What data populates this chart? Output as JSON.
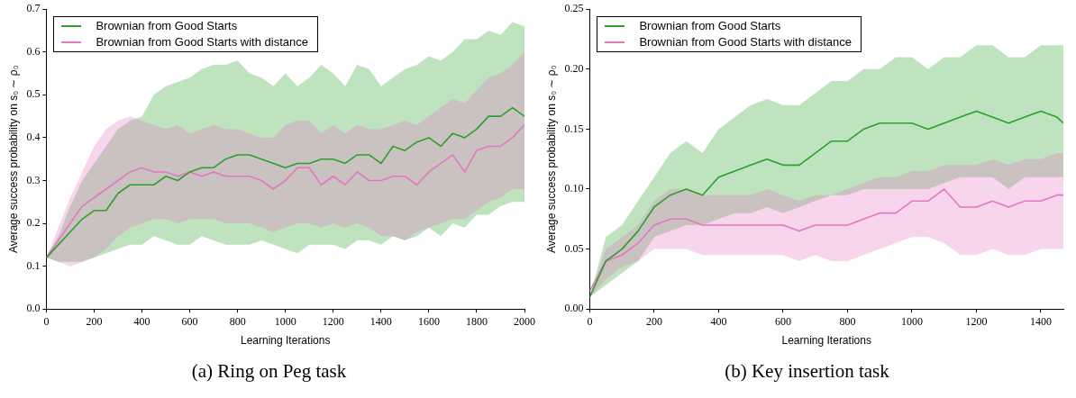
{
  "chart_data": [
    {
      "type": "line",
      "title": "(a) Ring on Peg task",
      "xlabel": "Learning Iterations",
      "ylabel": "Average success probability on s₀ ∼ ρ₀",
      "x": [
        0,
        50,
        100,
        150,
        200,
        250,
        300,
        350,
        400,
        450,
        500,
        550,
        600,
        650,
        700,
        750,
        800,
        850,
        900,
        950,
        1000,
        1050,
        1100,
        1150,
        1200,
        1250,
        1300,
        1350,
        1400,
        1450,
        1500,
        1550,
        1600,
        1650,
        1700,
        1750,
        1800,
        1850,
        1900,
        1950,
        2000
      ],
      "series": [
        {
          "name": "Brownian from Good Starts",
          "color": "#2ca02c",
          "values": [
            0.12,
            0.15,
            0.18,
            0.21,
            0.23,
            0.23,
            0.27,
            0.29,
            0.29,
            0.29,
            0.31,
            0.3,
            0.32,
            0.33,
            0.33,
            0.35,
            0.36,
            0.36,
            0.35,
            0.34,
            0.33,
            0.34,
            0.34,
            0.35,
            0.35,
            0.34,
            0.36,
            0.36,
            0.34,
            0.38,
            0.37,
            0.39,
            0.4,
            0.38,
            0.41,
            0.4,
            0.42,
            0.45,
            0.45,
            0.47,
            0.45
          ],
          "upper": [
            0.12,
            0.17,
            0.24,
            0.3,
            0.34,
            0.38,
            0.42,
            0.44,
            0.45,
            0.5,
            0.52,
            0.53,
            0.54,
            0.56,
            0.57,
            0.57,
            0.58,
            0.55,
            0.54,
            0.52,
            0.55,
            0.52,
            0.54,
            0.57,
            0.55,
            0.52,
            0.57,
            0.56,
            0.52,
            0.54,
            0.56,
            0.57,
            0.59,
            0.58,
            0.6,
            0.63,
            0.63,
            0.65,
            0.64,
            0.67,
            0.66
          ],
          "lower": [
            0.12,
            0.11,
            0.11,
            0.11,
            0.12,
            0.13,
            0.14,
            0.15,
            0.15,
            0.17,
            0.16,
            0.15,
            0.15,
            0.17,
            0.16,
            0.15,
            0.15,
            0.15,
            0.16,
            0.15,
            0.14,
            0.13,
            0.15,
            0.15,
            0.15,
            0.14,
            0.16,
            0.16,
            0.15,
            0.17,
            0.16,
            0.17,
            0.19,
            0.17,
            0.2,
            0.19,
            0.22,
            0.22,
            0.24,
            0.25,
            0.25
          ]
        },
        {
          "name": "Brownian from Good Starts with distance",
          "color": "#e377c2",
          "values": [
            0.12,
            0.16,
            0.2,
            0.24,
            0.26,
            0.28,
            0.3,
            0.32,
            0.33,
            0.32,
            0.32,
            0.31,
            0.32,
            0.31,
            0.32,
            0.31,
            0.31,
            0.31,
            0.3,
            0.28,
            0.3,
            0.33,
            0.33,
            0.29,
            0.31,
            0.29,
            0.32,
            0.3,
            0.3,
            0.31,
            0.31,
            0.29,
            0.32,
            0.34,
            0.36,
            0.32,
            0.37,
            0.38,
            0.38,
            0.4,
            0.43
          ],
          "upper": [
            0.12,
            0.19,
            0.26,
            0.32,
            0.38,
            0.42,
            0.44,
            0.45,
            0.44,
            0.43,
            0.42,
            0.43,
            0.41,
            0.42,
            0.43,
            0.42,
            0.42,
            0.41,
            0.4,
            0.4,
            0.43,
            0.44,
            0.44,
            0.41,
            0.43,
            0.41,
            0.43,
            0.42,
            0.42,
            0.43,
            0.44,
            0.43,
            0.45,
            0.47,
            0.49,
            0.48,
            0.51,
            0.54,
            0.55,
            0.57,
            0.6
          ],
          "lower": [
            0.12,
            0.11,
            0.1,
            0.11,
            0.12,
            0.14,
            0.17,
            0.19,
            0.2,
            0.21,
            0.21,
            0.2,
            0.21,
            0.21,
            0.21,
            0.2,
            0.2,
            0.2,
            0.19,
            0.18,
            0.19,
            0.2,
            0.2,
            0.19,
            0.2,
            0.19,
            0.2,
            0.19,
            0.17,
            0.17,
            0.16,
            0.18,
            0.19,
            0.2,
            0.21,
            0.21,
            0.23,
            0.25,
            0.26,
            0.28,
            0.28
          ]
        }
      ],
      "xlim": [
        0,
        2000
      ],
      "xticks": [
        0,
        200,
        400,
        600,
        800,
        1000,
        1200,
        1400,
        1600,
        1800,
        2000
      ],
      "ylim": [
        0,
        0.7
      ],
      "yticks": [
        {
          "value": 0,
          "label": "0.0"
        },
        0.1,
        0.2,
        0.3,
        0.4,
        0.5,
        0.6,
        0.7
      ],
      "legend": "top left",
      "grid": false
    },
    {
      "type": "line",
      "title": "(b) Key insertion task",
      "xlabel": "Learning Iterations",
      "ylabel": "Average success probability on s₀ ∼ ρ₀",
      "x": [
        0,
        50,
        100,
        150,
        200,
        250,
        300,
        350,
        400,
        450,
        500,
        550,
        600,
        650,
        700,
        750,
        800,
        850,
        900,
        950,
        1000,
        1050,
        1100,
        1150,
        1200,
        1250,
        1300,
        1350,
        1400,
        1450,
        1470
      ],
      "series": [
        {
          "name": "Brownian from Good Starts",
          "color": "#2ca02c",
          "values": [
            0.01,
            0.04,
            0.05,
            0.065,
            0.085,
            0.095,
            0.1,
            0.095,
            0.11,
            0.115,
            0.12,
            0.125,
            0.12,
            0.12,
            0.13,
            0.14,
            0.14,
            0.15,
            0.155,
            0.155,
            0.155,
            0.15,
            0.155,
            0.16,
            0.165,
            0.16,
            0.155,
            0.16,
            0.165,
            0.16,
            0.155
          ],
          "upper": [
            0.01,
            0.06,
            0.07,
            0.09,
            0.11,
            0.13,
            0.14,
            0.13,
            0.15,
            0.16,
            0.17,
            0.175,
            0.17,
            0.17,
            0.18,
            0.19,
            0.19,
            0.2,
            0.2,
            0.21,
            0.21,
            0.2,
            0.21,
            0.21,
            0.22,
            0.22,
            0.21,
            0.21,
            0.22,
            0.22,
            0.22
          ],
          "lower": [
            0.01,
            0.02,
            0.03,
            0.04,
            0.06,
            0.065,
            0.07,
            0.07,
            0.075,
            0.08,
            0.08,
            0.085,
            0.08,
            0.085,
            0.09,
            0.095,
            0.095,
            0.1,
            0.1,
            0.1,
            0.1,
            0.1,
            0.105,
            0.11,
            0.11,
            0.11,
            0.1,
            0.11,
            0.11,
            0.11,
            0.11
          ]
        },
        {
          "name": "Brownian from Good Starts with distance",
          "color": "#e377c2",
          "values": [
            0.015,
            0.04,
            0.045,
            0.055,
            0.07,
            0.075,
            0.075,
            0.07,
            0.07,
            0.07,
            0.07,
            0.07,
            0.07,
            0.065,
            0.07,
            0.07,
            0.07,
            0.075,
            0.08,
            0.08,
            0.09,
            0.09,
            0.1,
            0.085,
            0.085,
            0.09,
            0.085,
            0.09,
            0.09,
            0.095,
            0.095
          ],
          "upper": [
            0.01,
            0.05,
            0.06,
            0.07,
            0.09,
            0.1,
            0.1,
            0.095,
            0.095,
            0.095,
            0.095,
            0.1,
            0.095,
            0.09,
            0.095,
            0.095,
            0.1,
            0.105,
            0.11,
            0.11,
            0.115,
            0.115,
            0.12,
            0.12,
            0.12,
            0.125,
            0.12,
            0.125,
            0.125,
            0.13,
            0.13
          ],
          "lower": [
            0.01,
            0.025,
            0.035,
            0.04,
            0.05,
            0.05,
            0.05,
            0.045,
            0.045,
            0.045,
            0.045,
            0.045,
            0.045,
            0.04,
            0.045,
            0.04,
            0.04,
            0.045,
            0.05,
            0.055,
            0.06,
            0.06,
            0.055,
            0.045,
            0.045,
            0.05,
            0.045,
            0.045,
            0.05,
            0.05,
            0.05
          ]
        }
      ],
      "xlim": [
        0,
        1470
      ],
      "xticks": [
        0,
        200,
        400,
        600,
        800,
        1000,
        1200,
        1400
      ],
      "ylim": [
        0,
        0.25
      ],
      "yticks": [
        {
          "value": 0,
          "label": "0.00"
        },
        0.05,
        {
          "value": 0.1,
          "label": "0.10"
        },
        0.15,
        {
          "value": 0.2,
          "label": "0.20"
        },
        0.25
      ],
      "legend": "top left",
      "grid": false
    }
  ]
}
